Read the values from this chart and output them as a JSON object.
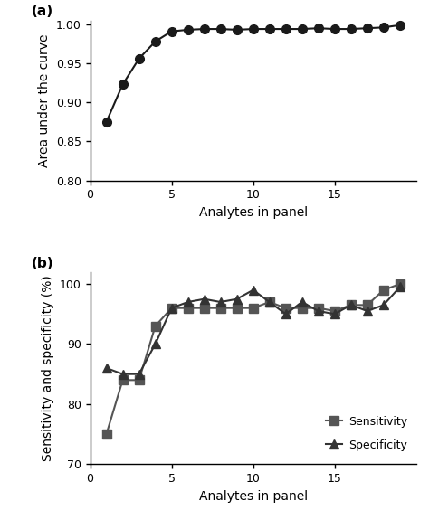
{
  "auc_x": [
    1,
    2,
    3,
    4,
    5,
    6,
    7,
    8,
    9,
    10,
    11,
    12,
    13,
    14,
    15,
    16,
    17,
    18,
    19
  ],
  "auc_y": [
    0.875,
    0.923,
    0.956,
    0.978,
    0.991,
    0.993,
    0.994,
    0.994,
    0.993,
    0.994,
    0.994,
    0.994,
    0.994,
    0.995,
    0.994,
    0.994,
    0.995,
    0.996,
    0.999
  ],
  "sens_x": [
    1,
    2,
    3,
    4,
    5,
    6,
    7,
    8,
    9,
    10,
    11,
    12,
    13,
    14,
    15,
    16,
    17,
    18,
    19
  ],
  "sens_y": [
    75.0,
    84.0,
    84.0,
    93.0,
    96.0,
    96.0,
    96.0,
    96.0,
    96.0,
    96.0,
    97.0,
    96.0,
    96.0,
    96.0,
    95.5,
    96.5,
    96.5,
    99.0,
    100.0
  ],
  "spec_x": [
    1,
    2,
    3,
    4,
    5,
    6,
    7,
    8,
    9,
    10,
    11,
    12,
    13,
    14,
    15,
    16,
    17,
    18,
    19
  ],
  "spec_y": [
    86.0,
    85.0,
    85.0,
    90.0,
    96.0,
    97.0,
    97.5,
    97.0,
    97.5,
    99.0,
    97.0,
    95.0,
    97.0,
    95.5,
    95.0,
    96.5,
    95.5,
    96.5,
    99.5
  ],
  "auc_ylim": [
    0.8,
    1.005
  ],
  "auc_yticks": [
    0.8,
    0.85,
    0.9,
    0.95,
    1.0
  ],
  "sens_ylim": [
    70,
    102
  ],
  "sens_yticks": [
    70,
    80,
    90,
    100
  ],
  "xlim": [
    0,
    20
  ],
  "xticks": [
    0,
    5,
    10,
    15
  ],
  "xlabel": "Analytes in panel",
  "auc_ylabel": "Area under the curve",
  "sens_ylabel": "Sensitivity and specificity (%)",
  "line_color": "#1a1a1a",
  "marker_color": "#1a1a1a",
  "sens_color": "#555555",
  "spec_color": "#333333",
  "bg_color": "#ffffff",
  "panel_a_label": "(a)",
  "panel_b_label": "(b)",
  "legend_sensitivity": "Sensitivity",
  "legend_specificity": "Specificity"
}
